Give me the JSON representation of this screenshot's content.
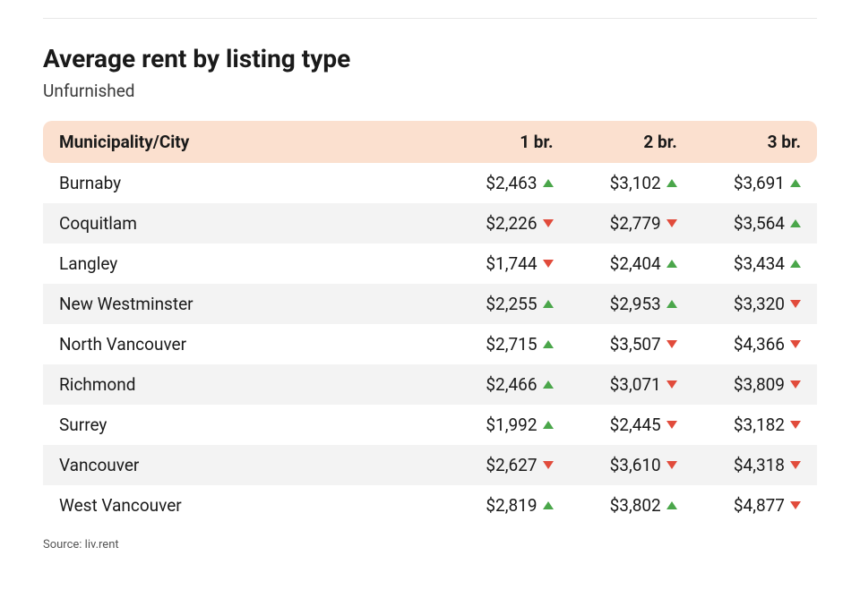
{
  "title": "Average rent by listing type",
  "subtitle": "Unfurnished",
  "source_label": "Source: liv.rent",
  "colors": {
    "header_bg": "#fbe0cf",
    "row_even_bg": "#f3f3f3",
    "row_odd_bg": "#ffffff",
    "text": "#1a1a1a",
    "up": "#4aa64a",
    "down": "#e14b3b",
    "divider": "#e8e8e8"
  },
  "table": {
    "type": "table",
    "columns": [
      "Municipality/City",
      "1 br.",
      "2 br.",
      "3 br."
    ],
    "rows": [
      {
        "city": "Burnaby",
        "cells": [
          {
            "value": "$2,463",
            "dir": "up"
          },
          {
            "value": "$3,102",
            "dir": "up"
          },
          {
            "value": "$3,691",
            "dir": "up"
          }
        ]
      },
      {
        "city": "Coquitlam",
        "cells": [
          {
            "value": "$2,226",
            "dir": "down"
          },
          {
            "value": "$2,779",
            "dir": "down"
          },
          {
            "value": "$3,564",
            "dir": "up"
          }
        ]
      },
      {
        "city": "Langley",
        "cells": [
          {
            "value": "$1,744",
            "dir": "down"
          },
          {
            "value": "$2,404",
            "dir": "up"
          },
          {
            "value": "$3,434",
            "dir": "up"
          }
        ]
      },
      {
        "city": "New Westminster",
        "cells": [
          {
            "value": "$2,255",
            "dir": "up"
          },
          {
            "value": "$2,953",
            "dir": "up"
          },
          {
            "value": "$3,320",
            "dir": "down"
          }
        ]
      },
      {
        "city": "North Vancouver",
        "cells": [
          {
            "value": "$2,715",
            "dir": "up"
          },
          {
            "value": "$3,507",
            "dir": "down"
          },
          {
            "value": "$4,366",
            "dir": "down"
          }
        ]
      },
      {
        "city": "Richmond",
        "cells": [
          {
            "value": "$2,466",
            "dir": "up"
          },
          {
            "value": "$3,071",
            "dir": "down"
          },
          {
            "value": "$3,809",
            "dir": "down"
          }
        ]
      },
      {
        "city": "Surrey",
        "cells": [
          {
            "value": "$1,992",
            "dir": "up"
          },
          {
            "value": "$2,445",
            "dir": "down"
          },
          {
            "value": "$3,182",
            "dir": "down"
          }
        ]
      },
      {
        "city": "Vancouver",
        "cells": [
          {
            "value": "$2,627",
            "dir": "down"
          },
          {
            "value": "$3,610",
            "dir": "down"
          },
          {
            "value": "$4,318",
            "dir": "down"
          }
        ]
      },
      {
        "city": "West Vancouver",
        "cells": [
          {
            "value": "$2,819",
            "dir": "up"
          },
          {
            "value": "$3,802",
            "dir": "up"
          },
          {
            "value": "$4,877",
            "dir": "down"
          }
        ]
      }
    ]
  }
}
